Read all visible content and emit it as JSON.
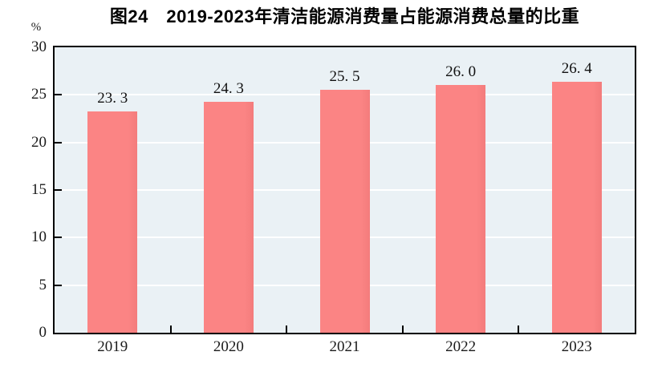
{
  "chart_data": {
    "type": "bar",
    "title": "图24　2019-2023年清洁能源消费量占能源消费总量的比重",
    "unit_label": "%",
    "categories": [
      "2019",
      "2020",
      "2021",
      "2022",
      "2023"
    ],
    "values": [
      23.3,
      24.3,
      25.5,
      26.0,
      26.4
    ],
    "value_labels": [
      "23. 3",
      "24. 3",
      "25. 5",
      "26. 0",
      "26. 4"
    ],
    "xlabel": "",
    "ylabel": "%",
    "ylim": [
      0,
      30
    ],
    "yticks": [
      0,
      5,
      10,
      15,
      20,
      25,
      30
    ],
    "legend": "none",
    "grid": "horizontal",
    "colors": {
      "bar": "#FB8484",
      "bar_edge": "#F37C7C",
      "plot_background": "#EAF1F5",
      "gridline": "#FFFFFF",
      "axis": "#000000",
      "tick_text": "#1A1A1A",
      "title_text": "#000000"
    }
  }
}
